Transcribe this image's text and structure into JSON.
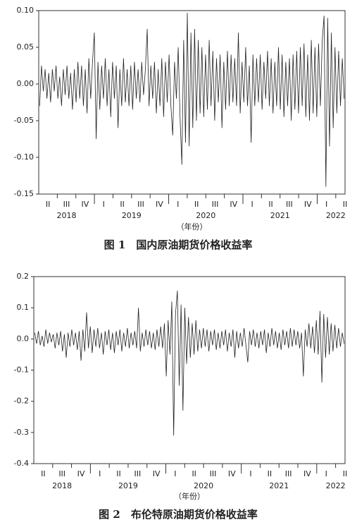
{
  "chart_data": [
    {
      "type": "line",
      "title": "图 1　国内原油期货价格收益率",
      "x_label": "（年份）",
      "color": "#222222",
      "quarter_labels": [
        "II",
        "III",
        "IV",
        "I",
        "II",
        "III",
        "IV",
        "I",
        "II",
        "III",
        "IV",
        "I",
        "II",
        "III",
        "IV",
        "I",
        "II"
      ],
      "year_labels": [
        "2018",
        "2019",
        "2020",
        "2021",
        "2022"
      ],
      "ylim": [
        -0.15,
        0.1
      ],
      "yticks": [
        -0.15,
        {
          "value": -0.1,
          "label": "-0.10"
        },
        -0.05,
        {
          "value": 0,
          "label": "0.00"
        },
        0.05,
        {
          "value": 0.1,
          "label": "0.10"
        }
      ],
      "values": [
        -0.03,
        0.025,
        -0.01,
        0.02,
        -0.02,
        0.015,
        -0.025,
        0.02,
        -0.01,
        0.025,
        -0.02,
        0.01,
        -0.03,
        0.02,
        -0.015,
        0.025,
        -0.02,
        0.015,
        -0.035,
        0.02,
        -0.025,
        0.03,
        -0.02,
        0.025,
        -0.03,
        0.02,
        -0.04,
        0.035,
        -0.02,
        0.03,
        0.07,
        -0.075,
        0.03,
        -0.035,
        0.025,
        -0.02,
        0.035,
        -0.03,
        0.02,
        -0.045,
        0.03,
        -0.02,
        0.025,
        -0.06,
        0.02,
        -0.03,
        0.035,
        -0.025,
        0.02,
        -0.03,
        0.025,
        -0.035,
        0.03,
        -0.02,
        0.02,
        -0.025,
        0.03,
        -0.015,
        0.02,
        0.075,
        -0.03,
        0.025,
        -0.02,
        0.03,
        -0.04,
        0.02,
        -0.03,
        0.035,
        -0.045,
        0.03,
        -0.025,
        0.04,
        -0.03,
        -0.07,
        0.03,
        -0.02,
        0.05,
        -0.045,
        -0.11,
        0.06,
        -0.08,
        0.097,
        -0.085,
        0.07,
        -0.06,
        0.075,
        -0.05,
        0.06,
        -0.04,
        0.05,
        -0.045,
        0.04,
        -0.035,
        0.06,
        -0.03,
        0.045,
        -0.05,
        0.035,
        -0.025,
        0.04,
        -0.06,
        0.03,
        -0.035,
        0.045,
        -0.03,
        0.04,
        -0.025,
        0.035,
        -0.03,
        0.07,
        -0.04,
        0.03,
        -0.025,
        0.05,
        -0.03,
        0.025,
        -0.08,
        0.04,
        -0.03,
        0.035,
        -0.025,
        0.04,
        -0.035,
        0.03,
        -0.02,
        0.045,
        -0.03,
        0.035,
        -0.04,
        0.03,
        -0.03,
        0.05,
        -0.035,
        0.04,
        -0.045,
        0.03,
        -0.03,
        0.035,
        -0.05,
        0.04,
        -0.035,
        0.045,
        -0.04,
        0.05,
        -0.03,
        0.055,
        -0.045,
        0.04,
        -0.05,
        0.06,
        -0.04,
        0.05,
        -0.045,
        0.055,
        -0.03,
        0.06,
        0.093,
        -0.14,
        0.09,
        -0.085,
        0.07,
        -0.06,
        0.05,
        -0.04,
        0.045,
        -0.03,
        0.035,
        -0.02
      ]
    },
    {
      "type": "line",
      "title": "图 2　布伦特原油期货价格收益率",
      "x_label": "（年份）",
      "color": "#222222",
      "quarter_labels": [
        "II",
        "III",
        "IV",
        "I",
        "II",
        "III",
        "IV",
        "I",
        "II",
        "III",
        "IV",
        "I",
        "II",
        "III",
        "IV",
        "I",
        "II"
      ],
      "year_labels": [
        "2018",
        "2019",
        "2020",
        "2021",
        "2022"
      ],
      "ylim": [
        -0.4,
        0.2
      ],
      "yticks": [
        -0.4,
        -0.3,
        -0.2,
        -0.1,
        {
          "value": 0,
          "label": "0.0"
        },
        0.1,
        0.2
      ],
      "values": [
        0.02,
        -0.015,
        0.025,
        -0.02,
        0.01,
        -0.025,
        0.03,
        -0.015,
        0.02,
        -0.01,
        0.015,
        -0.03,
        0.02,
        -0.02,
        0.025,
        -0.04,
        0.015,
        -0.06,
        0.02,
        -0.025,
        0.03,
        -0.02,
        0.02,
        -0.035,
        0.025,
        -0.07,
        0.03,
        -0.04,
        0.085,
        -0.03,
        0.04,
        -0.045,
        0.03,
        -0.025,
        0.035,
        -0.03,
        0.02,
        -0.05,
        0.025,
        -0.02,
        0.03,
        -0.035,
        0.02,
        -0.045,
        0.025,
        -0.02,
        0.03,
        -0.04,
        0.02,
        -0.025,
        0.035,
        -0.03,
        0.02,
        -0.02,
        0.025,
        -0.03,
        0.1,
        -0.04,
        0.02,
        -0.025,
        0.03,
        -0.02,
        0.025,
        -0.03,
        0.02,
        -0.035,
        0.03,
        -0.025,
        0.04,
        -0.03,
        0.05,
        -0.12,
        0.06,
        -0.05,
        0.12,
        -0.31,
        0.08,
        0.155,
        -0.15,
        0.11,
        -0.23,
        0.1,
        -0.08,
        0.07,
        -0.06,
        0.05,
        -0.05,
        0.06,
        -0.04,
        0.03,
        -0.03,
        0.035,
        -0.025,
        0.03,
        -0.04,
        0.025,
        -0.02,
        0.03,
        -0.035,
        0.02,
        -0.03,
        0.025,
        -0.02,
        0.03,
        -0.04,
        0.02,
        -0.025,
        0.03,
        -0.06,
        0.025,
        -0.03,
        0.02,
        -0.025,
        0.035,
        -0.02,
        -0.075,
        0.025,
        -0.02,
        0.03,
        -0.025,
        0.02,
        -0.03,
        0.025,
        -0.02,
        0.03,
        -0.045,
        0.02,
        -0.025,
        0.035,
        -0.02,
        0.025,
        -0.03,
        0.02,
        -0.035,
        0.03,
        -0.02,
        0.025,
        -0.03,
        0.035,
        -0.025,
        0.03,
        -0.02,
        0.025,
        -0.03,
        0.02,
        -0.12,
        0.03,
        -0.025,
        0.05,
        -0.03,
        0.04,
        -0.045,
        0.06,
        -0.05,
        0.09,
        -0.14,
        0.08,
        -0.06,
        0.07,
        -0.05,
        0.05,
        -0.04,
        0.045,
        -0.03,
        0.035,
        -0.025,
        0.02,
        -0.015
      ]
    }
  ]
}
